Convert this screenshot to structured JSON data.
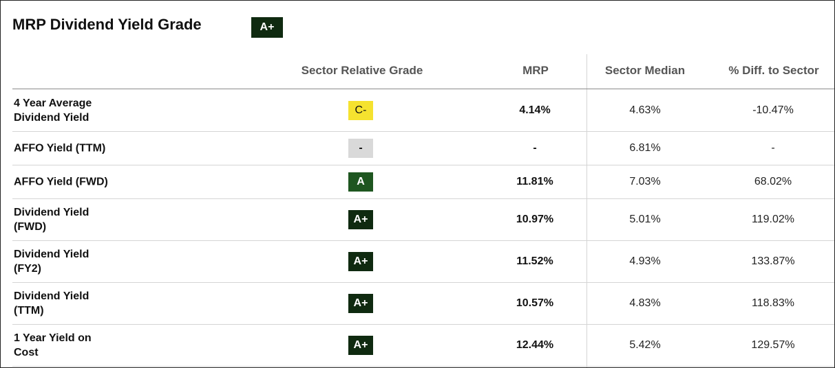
{
  "title": "MRP Dividend Yield Grade",
  "overall_grade": "A+",
  "columns": {
    "grade": "Sector Relative Grade",
    "ticker": "MRP",
    "median": "Sector Median",
    "diff": "% Diff. to Sector"
  },
  "rows": [
    {
      "metric": "4 Year Average Dividend Yield",
      "grade": "C-",
      "value": "4.14%",
      "median": "4.63%",
      "diff": "-10.47%"
    },
    {
      "metric": "AFFO Yield (TTM)",
      "grade": "-",
      "value": "-",
      "median": "6.81%",
      "diff": "-"
    },
    {
      "metric": "AFFO Yield (FWD)",
      "grade": "A",
      "value": "11.81%",
      "median": "7.03%",
      "diff": "68.02%"
    },
    {
      "metric": "Dividend Yield (FWD)",
      "grade": "A+",
      "value": "10.97%",
      "median": "5.01%",
      "diff": "119.02%"
    },
    {
      "metric": "Dividend Yield (FY2)",
      "grade": "A+",
      "value": "11.52%",
      "median": "4.93%",
      "diff": "133.87%"
    },
    {
      "metric": "Dividend Yield (TTM)",
      "grade": "A+",
      "value": "10.57%",
      "median": "4.83%",
      "diff": "118.83%"
    },
    {
      "metric": "1 Year Yield on Cost",
      "grade": "A+",
      "value": "12.44%",
      "median": "5.42%",
      "diff": "129.57%"
    }
  ],
  "grade_colors": {
    "A+": "#0f2a10",
    "A": "#1e5620",
    "C-": "#f5e22f",
    "-": "#d9d9d9"
  }
}
